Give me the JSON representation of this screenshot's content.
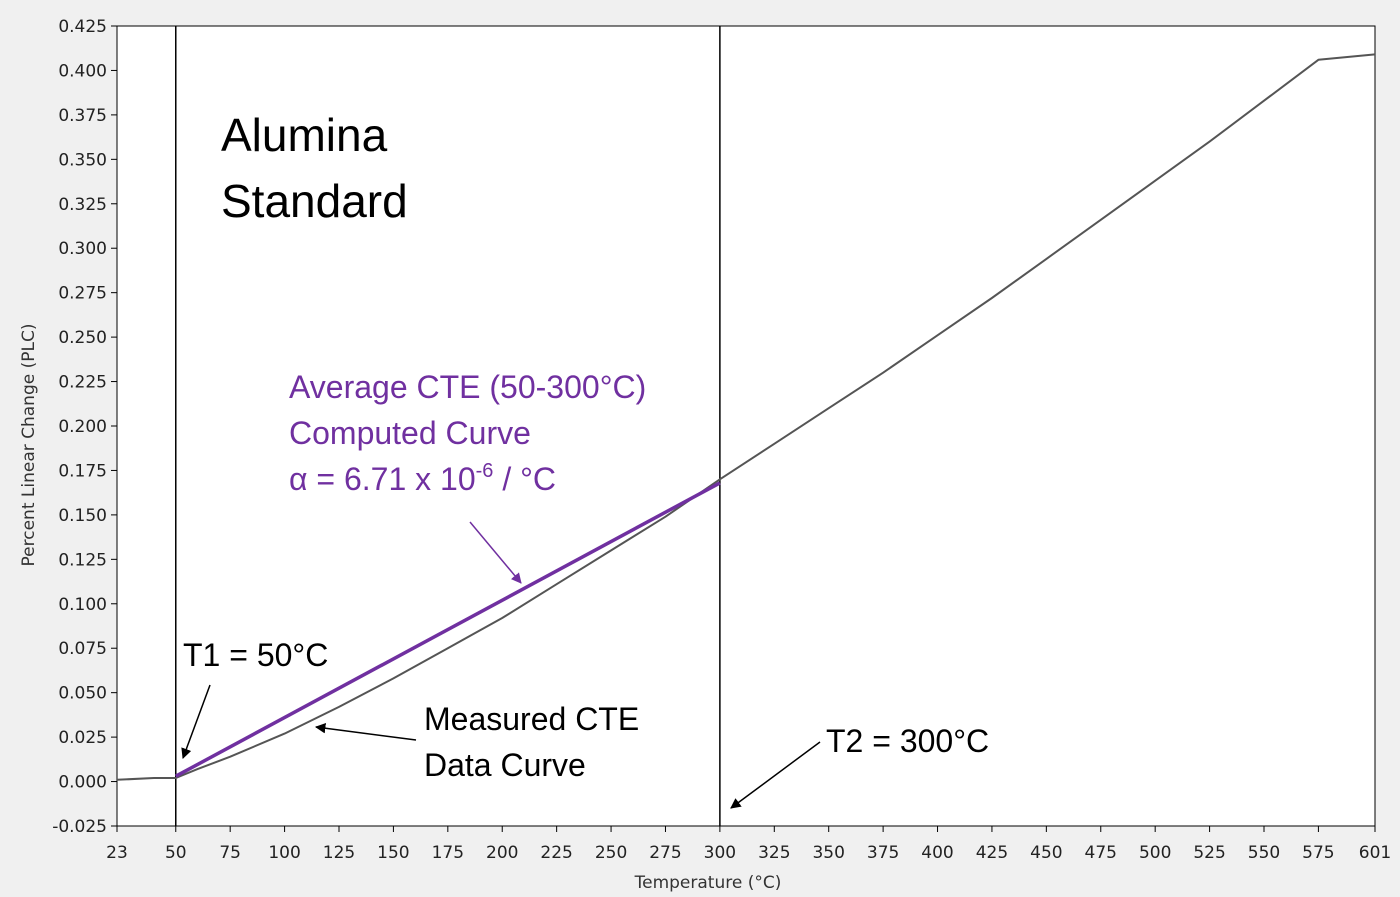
{
  "chart_data": {
    "type": "line",
    "title": "",
    "xlabel": "Temperature (°C)",
    "ylabel": "Percent Linear Change (PLC)",
    "xlim": [
      23,
      601
    ],
    "ylim": [
      -0.025,
      0.425
    ],
    "x_tick_values": [
      23,
      50,
      75,
      100,
      125,
      150,
      175,
      200,
      225,
      250,
      275,
      300,
      325,
      350,
      375,
      400,
      425,
      450,
      475,
      500,
      525,
      550,
      575,
      601
    ],
    "x_tick_labels": [
      "23",
      "50",
      "75",
      "100",
      "125",
      "150",
      "175",
      "200",
      "225",
      "250",
      "275",
      "300",
      "325",
      "350",
      "375",
      "400",
      "425",
      "450",
      "475",
      "500",
      "525",
      "550",
      "575",
      "601"
    ],
    "y_tick_values": [
      -0.025,
      0,
      0.025,
      0.05,
      0.075,
      0.1,
      0.125,
      0.15,
      0.175,
      0.2,
      0.225,
      0.25,
      0.275,
      0.3,
      0.325,
      0.35,
      0.375,
      0.4,
      0.425
    ],
    "y_tick_labels": [
      "-0.025",
      "0.000",
      "0.025",
      "0.050",
      "0.075",
      "0.100",
      "0.125",
      "0.150",
      "0.175",
      "0.200",
      "0.225",
      "0.250",
      "0.275",
      "0.300",
      "0.325",
      "0.350",
      "0.375",
      "0.400",
      "0.425"
    ],
    "grid": false,
    "colors": {
      "measured": "#555555",
      "computed": "#7030a0",
      "plot_bg": "#ffffff",
      "page_bg": "#f0f0f0"
    },
    "series": [
      {
        "key": "measured",
        "x": [
          23,
          40,
          50,
          60,
          75,
          100,
          125,
          150,
          175,
          200,
          225,
          250,
          275,
          300,
          325,
          350,
          375,
          400,
          425,
          450,
          475,
          500,
          525,
          550,
          575,
          601
        ],
        "y": [
          0.001,
          0.002,
          0.002,
          0.007,
          0.014,
          0.027,
          0.042,
          0.058,
          0.075,
          0.092,
          0.111,
          0.13,
          0.149,
          0.17,
          0.19,
          0.21,
          0.23,
          0.251,
          0.272,
          0.294,
          0.316,
          0.338,
          0.36,
          0.383,
          0.406,
          0.409
        ]
      },
      {
        "key": "computed",
        "x": [
          50,
          300
        ],
        "y": [
          0.003,
          0.168
        ]
      }
    ],
    "vertical_lines": [
      50,
      300
    ],
    "annotations": {
      "sample_title": [
        "Alumina",
        "Standard"
      ],
      "computed_label": {
        "line1": "Average CTE (50-300°C)",
        "line2": "Computed Curve",
        "line3_main": "α = 6.71 x 10",
        "line3_sup": "-6",
        "line3_tail": " / °C"
      },
      "t1_label": "T1 = 50°C",
      "t2_label": "T2 = 300°C",
      "measured_label": [
        "Measured CTE",
        "Data Curve"
      ]
    }
  }
}
